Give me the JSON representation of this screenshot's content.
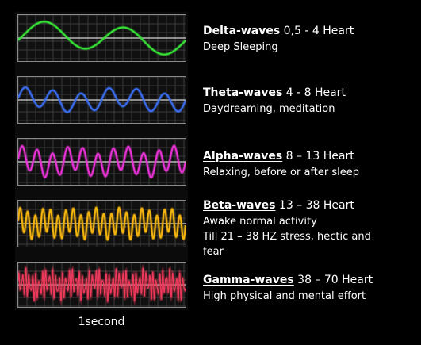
{
  "caption": "1second",
  "waves": [
    {
      "name": "Delta-waves",
      "range": "0,5 - 4 Heart",
      "lines": [
        "Deep Sleeping"
      ],
      "color": "#36e336",
      "frequency_hz": 2,
      "amplitude": 0.8
    },
    {
      "name": "Theta-waves",
      "range": "4 - 8 Heart",
      "lines": [
        "Daydreaming, meditation"
      ],
      "color": "#3a6cf0",
      "frequency_hz": 6,
      "amplitude": 0.62
    },
    {
      "name": "Alpha-waves",
      "range": "8 – 13 Heart",
      "lines": [
        "Relaxing, before or after sleep"
      ],
      "color": "#e832d6",
      "frequency_hz": 11,
      "amplitude": 0.78
    },
    {
      "name": "Beta-waves",
      "range": "13 – 38 Heart",
      "lines": [
        "Awake normal activity",
        "Till 21 – 38 HZ stress, hectic and",
        "fear"
      ],
      "color": "#f2b30f",
      "frequency_hz": 22,
      "amplitude": 0.78
    },
    {
      "name": "Gamma-waves",
      "range": "38 – 70 Heart",
      "lines": [
        "High physical and mental effort"
      ],
      "color": "#ee3a5a",
      "frequency_hz": 50,
      "amplitude": 0.85
    }
  ]
}
